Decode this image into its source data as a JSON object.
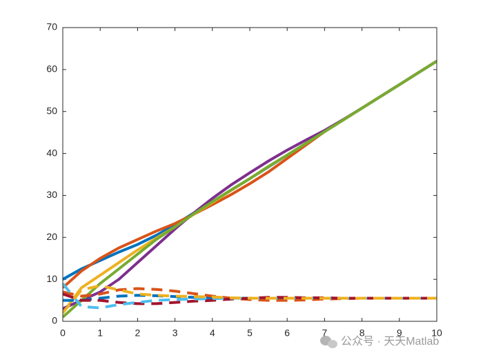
{
  "chart_data": {
    "type": "line",
    "x": [
      0,
      0.5,
      1,
      1.5,
      2,
      2.5,
      3,
      3.5,
      4,
      4.5,
      5,
      5.5,
      6,
      6.5,
      7,
      7.5,
      8,
      8.5,
      9,
      9.5,
      10
    ],
    "series": [
      {
        "color": "#0072BD",
        "dashed": false,
        "values": [
          10,
          12.5,
          14.5,
          16.5,
          18.3,
          20.5,
          23,
          25.8,
          28.5,
          31.2,
          34,
          36.8,
          39.6,
          42.4,
          45.2,
          48,
          50.8,
          53.6,
          56.4,
          59.2,
          62
        ]
      },
      {
        "color": "#D95319",
        "dashed": false,
        "values": [
          8,
          12,
          15,
          17.5,
          19.5,
          21.5,
          23.3,
          25.5,
          27.8,
          30.2,
          32.8,
          35.6,
          38.8,
          42,
          45.2,
          48,
          50.8,
          53.6,
          56.4,
          59.2,
          62
        ]
      },
      {
        "color": "#EDB120",
        "dashed": false,
        "values": [
          2,
          8,
          11,
          14,
          17,
          19.8,
          22.5,
          25.5,
          28.3,
          31.2,
          34,
          36.9,
          39.6,
          42.4,
          45.2,
          48,
          50.8,
          53.6,
          56.4,
          59.2,
          62
        ]
      },
      {
        "color": "#7E2F8E",
        "dashed": false,
        "values": [
          3,
          5,
          7,
          10,
          14,
          18,
          22,
          25.8,
          29.3,
          32.5,
          35.4,
          38.2,
          40.8,
          43.2,
          45.5,
          48.1,
          50.8,
          53.6,
          56.4,
          59.2,
          62
        ]
      },
      {
        "color": "#77AC30",
        "dashed": false,
        "values": [
          1,
          5,
          9,
          12.5,
          16,
          19.5,
          22.5,
          25.6,
          28.5,
          31.3,
          34,
          36.9,
          39.6,
          42.4,
          45.2,
          48,
          50.8,
          53.6,
          56.4,
          59.2,
          62
        ]
      },
      {
        "color": "#0072BD",
        "dashed": true,
        "values": [
          5,
          5,
          5.5,
          6,
          6.2,
          6.1,
          5.9,
          5.7,
          5.6,
          5.5,
          5.5,
          5.5,
          5.5,
          5.5,
          5.5,
          5.5,
          5.5,
          5.5,
          5.5,
          5.5,
          5.5
        ]
      },
      {
        "color": "#D95319",
        "dashed": true,
        "values": [
          7,
          6,
          6.5,
          7.5,
          7.8,
          7.6,
          7.2,
          6.6,
          6,
          5.5,
          5.2,
          5,
          5,
          5.1,
          5.3,
          5.4,
          5.5,
          5.5,
          5.5,
          5.5,
          5.5
        ]
      },
      {
        "color": "#A2142F",
        "dashed": true,
        "values": [
          6.5,
          5,
          5,
          4.5,
          4.2,
          4.2,
          4.5,
          4.8,
          5,
          5.3,
          5.5,
          5.7,
          5.7,
          5.6,
          5.6,
          5.5,
          5.5,
          5.5,
          5.5,
          5.5,
          5.5
        ]
      },
      {
        "color": "#4DBEEE",
        "dashed": true,
        "values": [
          9,
          3.5,
          3.2,
          4,
          4.5,
          5,
          5.2,
          5.3,
          5.4,
          5.5,
          5.5,
          5.5,
          5.5,
          5.5,
          5.5,
          5.5,
          5.5,
          5.5,
          5.5,
          5.5,
          5.5
        ]
      },
      {
        "color": "#EDB120",
        "dashed": true,
        "values": [
          2,
          7.5,
          8.5,
          7.5,
          6.5,
          6.2,
          6,
          5.9,
          5.8,
          5.6,
          5.5,
          5.5,
          5.5,
          5.5,
          5.5,
          5.5,
          5.5,
          5.5,
          5.5,
          5.5,
          5.5
        ]
      }
    ],
    "xlim": [
      0,
      10
    ],
    "xticks": [
      0,
      1,
      2,
      3,
      4,
      5,
      6,
      7,
      8,
      9,
      10
    ],
    "ylim": [
      0,
      70
    ],
    "yticks": [
      0,
      10,
      20,
      30,
      40,
      50,
      60,
      70
    ],
    "line_width": 4
  },
  "watermark": "公众号 · 天天Matlab"
}
